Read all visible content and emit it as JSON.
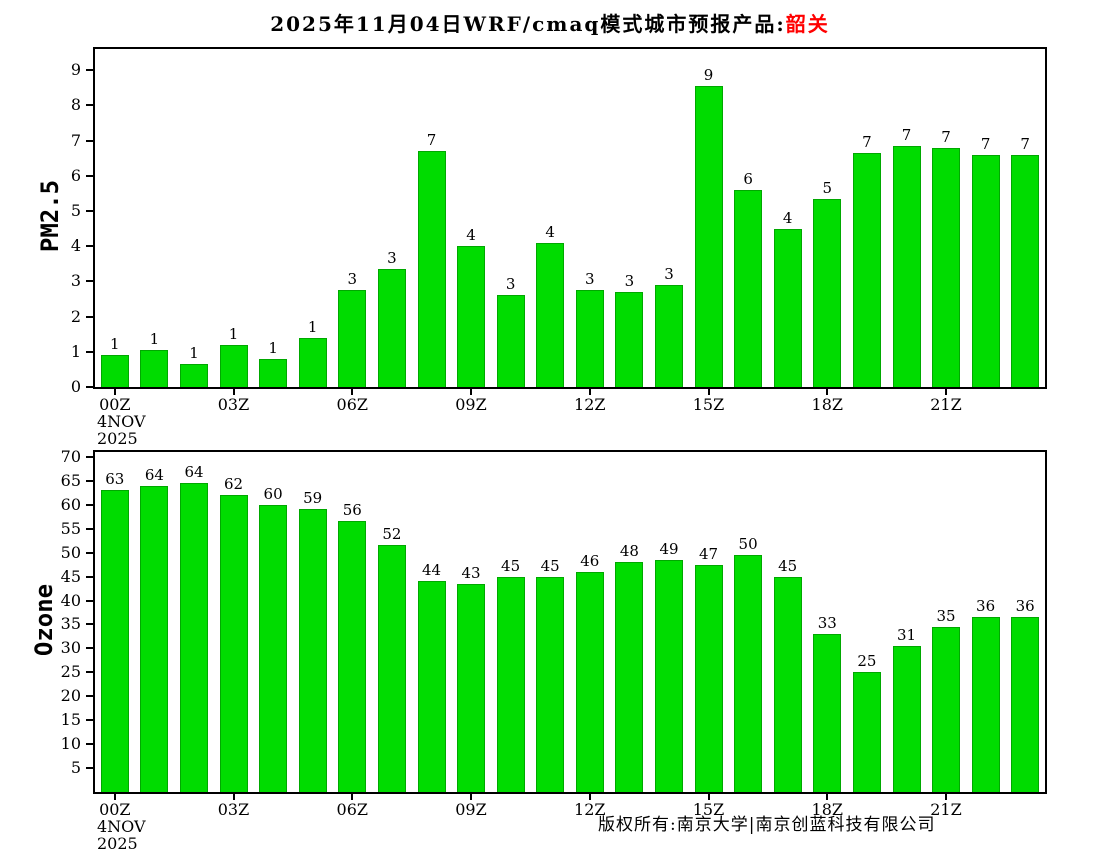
{
  "title": {
    "prefix": "2025年11月04日WRF/cmaq模式城市预报产品:",
    "city": "韶关"
  },
  "footer": "版权所有:南京大学|南京创蓝科技有限公司",
  "colors": {
    "bar": "#00dc00",
    "bar_edge": "#00a800",
    "city": "#ff0000",
    "axis": "#000000"
  },
  "chart_data": [
    {
      "type": "bar",
      "title": "",
      "ylabel": "PM2.5",
      "xlabel": "",
      "ylim": [
        0,
        9.6
      ],
      "yticks": [
        0,
        1,
        2,
        3,
        4,
        5,
        6,
        7,
        8,
        9
      ],
      "grid": false,
      "legend": "none",
      "x_labels": [
        "00Z",
        "03Z",
        "06Z",
        "09Z",
        "12Z",
        "15Z",
        "18Z",
        "21Z"
      ],
      "x_label_positions": [
        0,
        3,
        6,
        9,
        12,
        15,
        18,
        21
      ],
      "date_label": [
        "4NOV",
        "2025"
      ],
      "values": [
        0.9,
        1.05,
        0.65,
        1.2,
        0.8,
        1.4,
        2.75,
        3.35,
        6.7,
        4.0,
        2.6,
        4.1,
        2.75,
        2.7,
        2.9,
        8.55,
        5.6,
        4.5,
        5.35,
        6.65,
        6.85,
        6.8,
        6.6,
        6.6
      ],
      "bar_labels": [
        "1",
        "1",
        "1",
        "1",
        "1",
        "1",
        "3",
        "3",
        "7",
        "4",
        "3",
        "4",
        "3",
        "3",
        "3",
        "9",
        "6",
        "4",
        "5",
        "7",
        "7",
        "7",
        "7",
        "7"
      ]
    },
    {
      "type": "bar",
      "title": "",
      "ylabel": "Ozone",
      "xlabel": "",
      "ylim": [
        0,
        71
      ],
      "yticks": [
        5,
        10,
        15,
        20,
        25,
        30,
        35,
        40,
        45,
        50,
        55,
        60,
        65,
        70
      ],
      "grid": false,
      "legend": "none",
      "x_labels": [
        "00Z",
        "03Z",
        "06Z",
        "09Z",
        "12Z",
        "15Z",
        "18Z",
        "21Z"
      ],
      "x_label_positions": [
        0,
        3,
        6,
        9,
        12,
        15,
        18,
        21
      ],
      "date_label": [
        "4NOV",
        "2025"
      ],
      "values": [
        63,
        64,
        64.5,
        62,
        60,
        59,
        56.5,
        51.5,
        44,
        43.5,
        45,
        45,
        46,
        48,
        48.5,
        47.5,
        49.5,
        45,
        33,
        25,
        30.5,
        34.5,
        36.5,
        36.5
      ],
      "bar_labels": [
        "63",
        "64",
        "64",
        "62",
        "60",
        "59",
        "56",
        "52",
        "44",
        "43",
        "45",
        "45",
        "46",
        "48",
        "49",
        "47",
        "50",
        "45",
        "33",
        "25",
        "31",
        "35",
        "36",
        "36"
      ]
    }
  ]
}
